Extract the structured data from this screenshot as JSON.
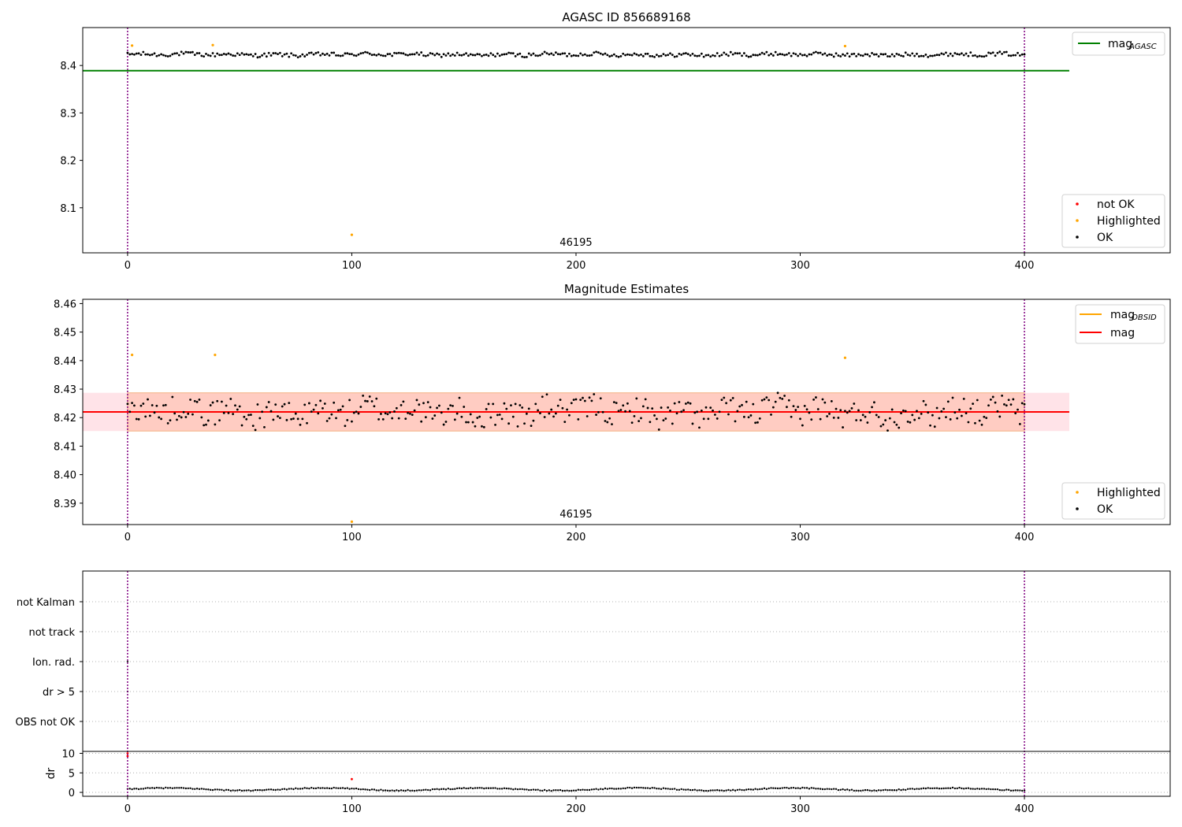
{
  "colors": {
    "agasc_line": "#008000",
    "mag_line": "#ff0000",
    "obsid_line": "#ffa500",
    "ok": "#000000",
    "highlighted": "#ffa500",
    "not_ok": "#ff0000",
    "vline": "#800080",
    "band_outer": "#ffc0cb",
    "band_inner": "#ffa07a",
    "grid": "#b0b0b0"
  },
  "chart_data": [
    {
      "type": "scatter",
      "title": "AGASC ID 856689168",
      "xlim": [
        -20,
        465
      ],
      "ylim": [
        8.005,
        8.48
      ],
      "xticks": [
        0,
        100,
        200,
        300,
        400
      ],
      "yticks": [
        8.1,
        8.2,
        8.3,
        8.4
      ],
      "ytick_labels": [
        "8.1",
        "8.2",
        "8.3",
        "8.4"
      ],
      "obsid_label": "46195",
      "obsid_label_x": 200,
      "vlines_x": [
        0,
        400
      ],
      "hline": {
        "name": "mag_AGASC",
        "y": 8.389,
        "x_range": [
          -20,
          420
        ]
      },
      "legend_lines": [
        {
          "label": "mag",
          "sub": "AGASC"
        }
      ],
      "legend_markers": [
        "not OK",
        "Highlighted",
        "OK"
      ],
      "ok_series": {
        "x_range": [
          0,
          400
        ],
        "base": 8.423,
        "amplitude": 0.006,
        "spacing": 1.0
      },
      "highlighted_points": [
        {
          "x": 2,
          "y": 8.442
        },
        {
          "x": 38,
          "y": 8.443
        },
        {
          "x": 100,
          "y": 8.043
        },
        {
          "x": 320,
          "y": 8.441
        }
      ],
      "not_ok_points": []
    },
    {
      "type": "scatter",
      "title": "Magnitude Estimates",
      "xlim": [
        -20,
        465
      ],
      "ylim": [
        8.3825,
        8.4615
      ],
      "xticks": [
        0,
        100,
        200,
        300,
        400
      ],
      "yticks": [
        8.39,
        8.4,
        8.41,
        8.42,
        8.43,
        8.44,
        8.45,
        8.46
      ],
      "ytick_labels": [
        "8.39",
        "8.40",
        "8.41",
        "8.42",
        "8.43",
        "8.44",
        "8.45",
        "8.46"
      ],
      "obsid_label": "46195",
      "obsid_label_x": 200,
      "vlines_x": [
        0,
        400
      ],
      "mag": 8.422,
      "band": {
        "low": 8.4153,
        "high": 8.4287,
        "x_range": [
          -20,
          420
        ]
      },
      "legend_lines": [
        {
          "label": "mag",
          "sub": "OBSID",
          "color": "obsid"
        },
        {
          "label": "mag",
          "sub": "",
          "color": "mag"
        }
      ],
      "legend_markers": [
        "Highlighted",
        "OK"
      ],
      "ok_series": {
        "x_range": [
          0,
          400
        ],
        "base": 8.422,
        "amplitude": 0.0065,
        "spacing": 1.0
      },
      "highlighted_points": [
        {
          "x": 2,
          "y": 8.442
        },
        {
          "x": 39,
          "y": 8.442
        },
        {
          "x": 100,
          "y": 8.3835
        },
        {
          "x": 320,
          "y": 8.441
        }
      ]
    },
    {
      "type": "scatter",
      "title": "",
      "xlim": [
        -20,
        465
      ],
      "xticks": [
        0,
        100,
        200,
        300,
        400
      ],
      "vlines_x": [
        0,
        400
      ],
      "flag_rows": [
        "not Kalman",
        "not track",
        "Ion. rad.",
        "dr > 5",
        "OBS not OK"
      ],
      "flag_points": [
        {
          "row": "Ion. rad.",
          "x": 0
        },
        {
          "row": "dr > 5",
          "x": 0
        }
      ],
      "dr_panel": {
        "ylabel": "dr",
        "ylim": [
          -1,
          10.5
        ],
        "yticks": [
          0,
          5,
          10
        ],
        "ytick_labels": [
          "0",
          "5",
          "10"
        ],
        "ok_series": {
          "x_range": [
            0,
            400
          ],
          "base": 0.8,
          "amplitude": 0.4
        },
        "not_ok_points": [
          {
            "x": 0,
            "y": 10.0
          },
          {
            "x": 0,
            "y": 9.3
          },
          {
            "x": 100,
            "y": 3.4
          }
        ]
      }
    }
  ]
}
